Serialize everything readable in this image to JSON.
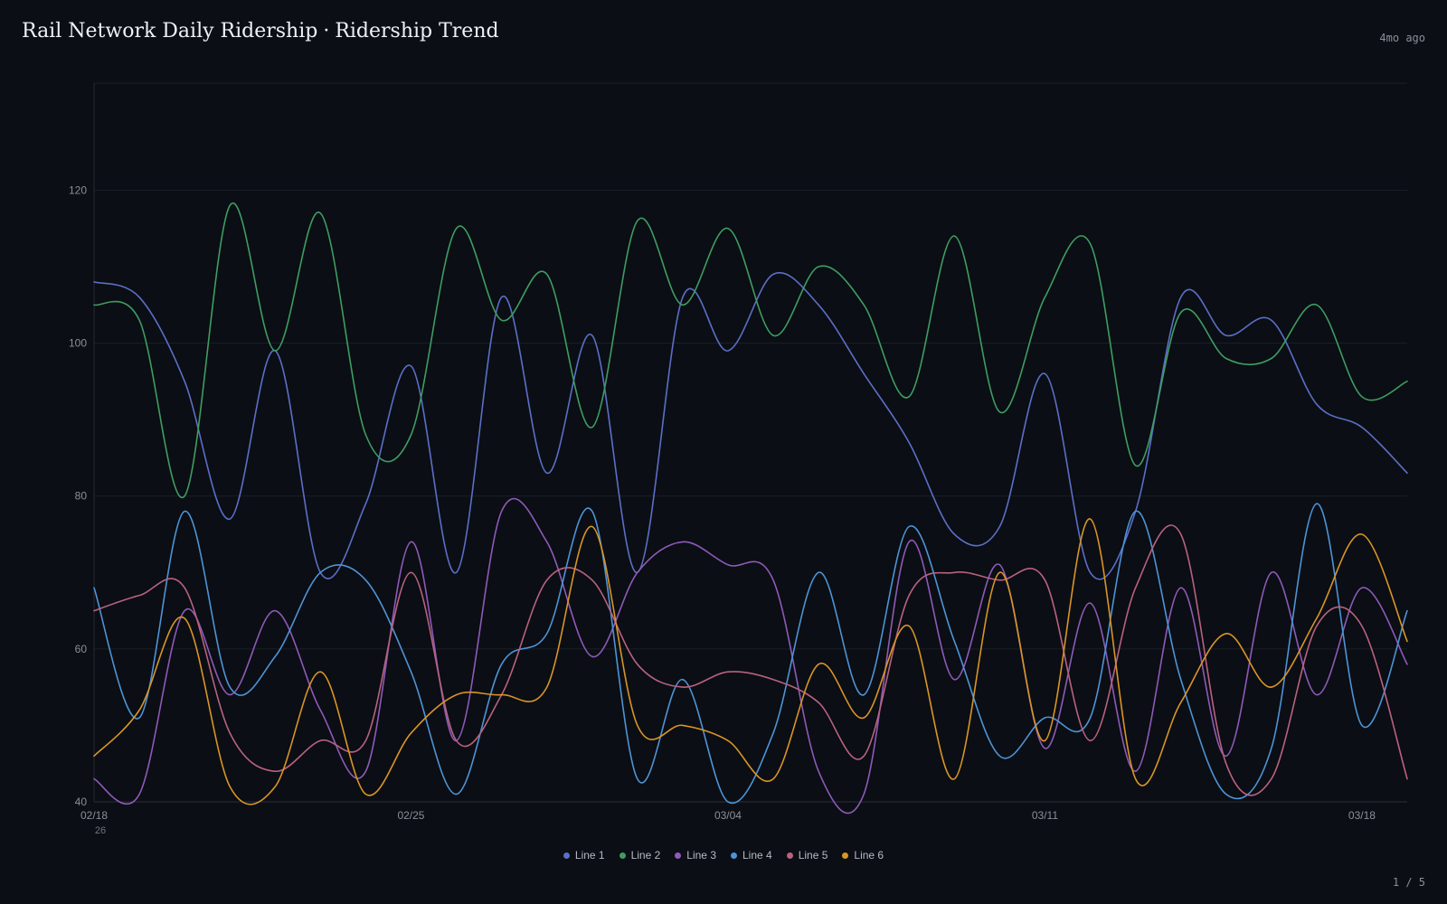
{
  "header": {
    "title": "Rail Network Daily Ridership",
    "separator": "·",
    "subtitle": "Ridership Trend",
    "timestamp": "4mo ago"
  },
  "footer": {
    "pager": "1 / 5"
  },
  "chart_data": {
    "type": "line",
    "title": "Rail Network Daily Ridership · Ridership Trend",
    "xlabel": "",
    "ylabel": "",
    "ylim": [
      40,
      134
    ],
    "yticks": [
      40,
      60,
      80,
      100,
      120
    ],
    "x_start": "02/18",
    "x_tick_labels": [
      "02/18",
      "02/25",
      "03/04",
      "03/11",
      "03/18"
    ],
    "x_tick_sublabel": "26",
    "grid": "horizontal",
    "legend_position": "bottom-center",
    "x": [
      "02/18",
      "02/19",
      "02/20",
      "02/21",
      "02/22",
      "02/23",
      "02/24",
      "02/25",
      "02/26",
      "02/27",
      "02/28",
      "03/01",
      "03/02",
      "03/03",
      "03/04",
      "03/05",
      "03/06",
      "03/07",
      "03/08",
      "03/09",
      "03/10",
      "03/11",
      "03/12",
      "03/13",
      "03/14",
      "03/15",
      "03/16",
      "03/17",
      "03/18",
      "03/19"
    ],
    "series": [
      {
        "name": "Line 1",
        "color": "#5b6fc7",
        "values": [
          108,
          106,
          95,
          77,
          99,
          70,
          79,
          97,
          70,
          106,
          83,
          101,
          70,
          106,
          99,
          109,
          105,
          96,
          87,
          75,
          76,
          96,
          70,
          78,
          106,
          101,
          103,
          92,
          89,
          83
        ]
      },
      {
        "name": "Line 2",
        "color": "#3f9d62",
        "values": [
          105,
          103,
          80,
          118,
          99,
          117,
          88,
          88,
          115,
          103,
          109,
          89,
          116,
          105,
          115,
          101,
          110,
          105,
          93,
          114,
          91,
          106,
          113,
          84,
          104,
          98,
          98,
          105,
          93,
          95
        ]
      },
      {
        "name": "Line 3",
        "color": "#8e5ab8",
        "values": [
          43,
          41,
          65,
          54,
          65,
          52,
          44,
          74,
          48,
          78,
          74,
          59,
          70,
          74,
          71,
          69,
          44,
          41,
          74,
          56,
          71,
          47,
          66,
          44,
          68,
          46,
          70,
          54,
          68,
          58
        ]
      },
      {
        "name": "Line 4",
        "color": "#4d94d6",
        "values": [
          68,
          51,
          78,
          55,
          59,
          70,
          69,
          57,
          41,
          58,
          62,
          78,
          43,
          56,
          40,
          49,
          70,
          54,
          76,
          61,
          46,
          51,
          51,
          78,
          56,
          41,
          47,
          79,
          50,
          65
        ]
      },
      {
        "name": "Line 5",
        "color": "#b8627f",
        "values": [
          65,
          67,
          68,
          49,
          44,
          48,
          48,
          70,
          48,
          54,
          69,
          69,
          58,
          55,
          57,
          56,
          53,
          46,
          67,
          70,
          69,
          69,
          48,
          68,
          75,
          45,
          43,
          63,
          63,
          43
        ]
      },
      {
        "name": "Line 6",
        "color": "#d99526",
        "values": [
          46,
          52,
          64,
          42,
          42,
          57,
          41,
          49,
          54,
          54,
          55,
          76,
          50,
          50,
          48,
          43,
          58,
          51,
          63,
          43,
          70,
          48,
          77,
          43,
          53,
          62,
          55,
          64,
          75,
          61
        ]
      }
    ]
  }
}
